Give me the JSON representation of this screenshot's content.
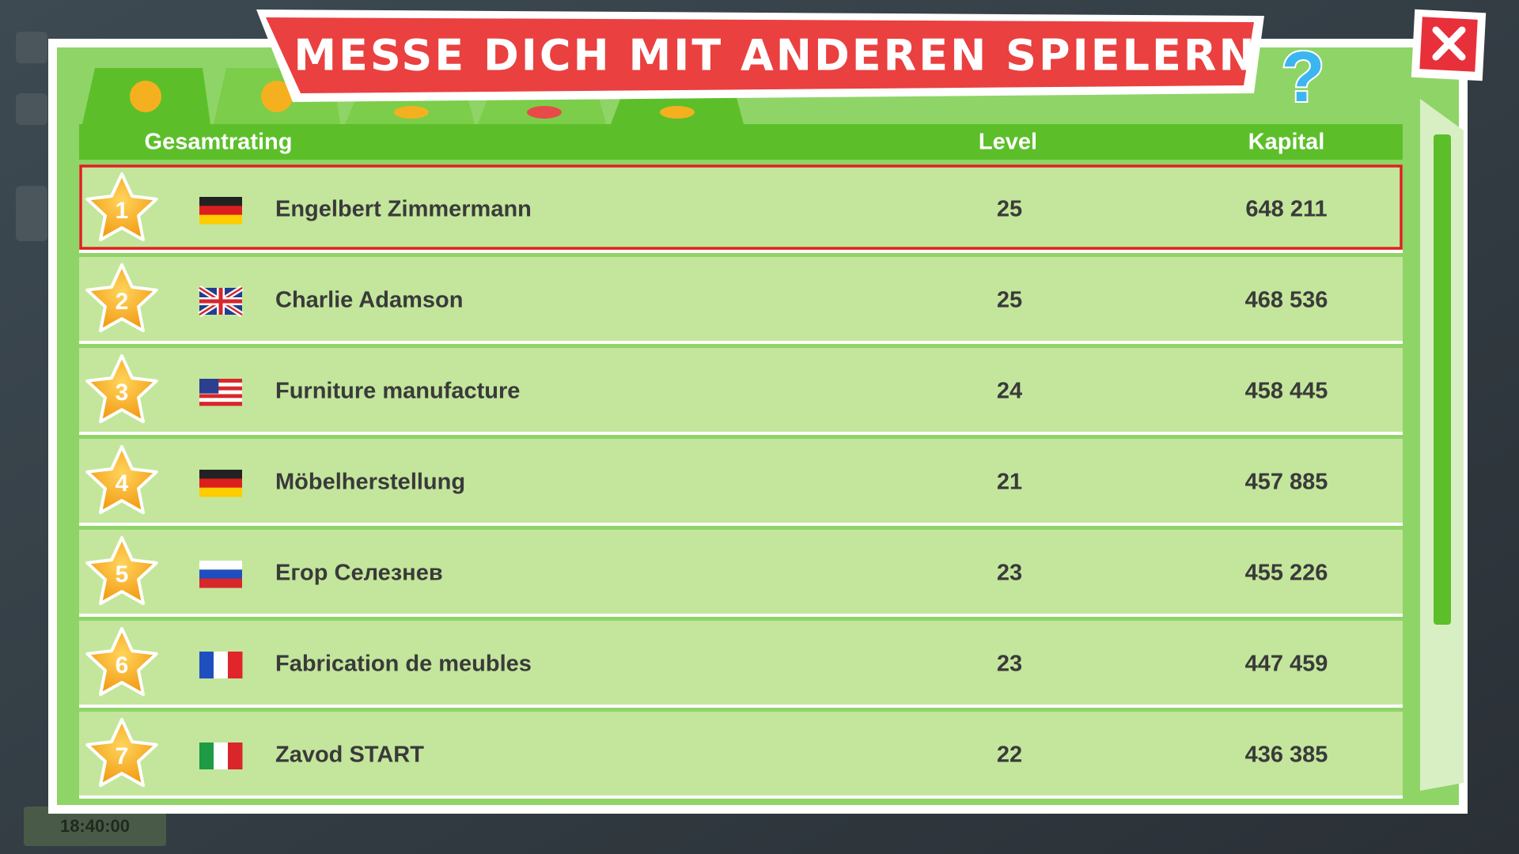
{
  "header": {
    "title": "MESSE DICH MIT ANDEREN SPIELERN",
    "help": "?"
  },
  "table": {
    "columns": [
      "Gesamtrating",
      "Level",
      "Kapital"
    ],
    "rows": [
      {
        "rank": "1",
        "name": "Engelbert Zimmermann",
        "level": "25",
        "capital": "648 211"
      },
      {
        "rank": "2",
        "name": "Charlie Adamson",
        "level": "25",
        "capital": "468 536"
      },
      {
        "rank": "3",
        "name": "Furniture manufacture",
        "level": "24",
        "capital": "458 445"
      },
      {
        "rank": "4",
        "name": "Möbelherstellung",
        "level": "21",
        "capital": "457 885"
      },
      {
        "rank": "5",
        "name": "Егор Селезнев",
        "level": "23",
        "capital": "455 226"
      },
      {
        "rank": "6",
        "name": "Fabrication de meubles",
        "level": "23",
        "capital": "447 459"
      },
      {
        "rank": "7",
        "name": "Zavod START",
        "level": "22",
        "capital": "436 385"
      }
    ]
  },
  "clock": "18:40:00"
}
